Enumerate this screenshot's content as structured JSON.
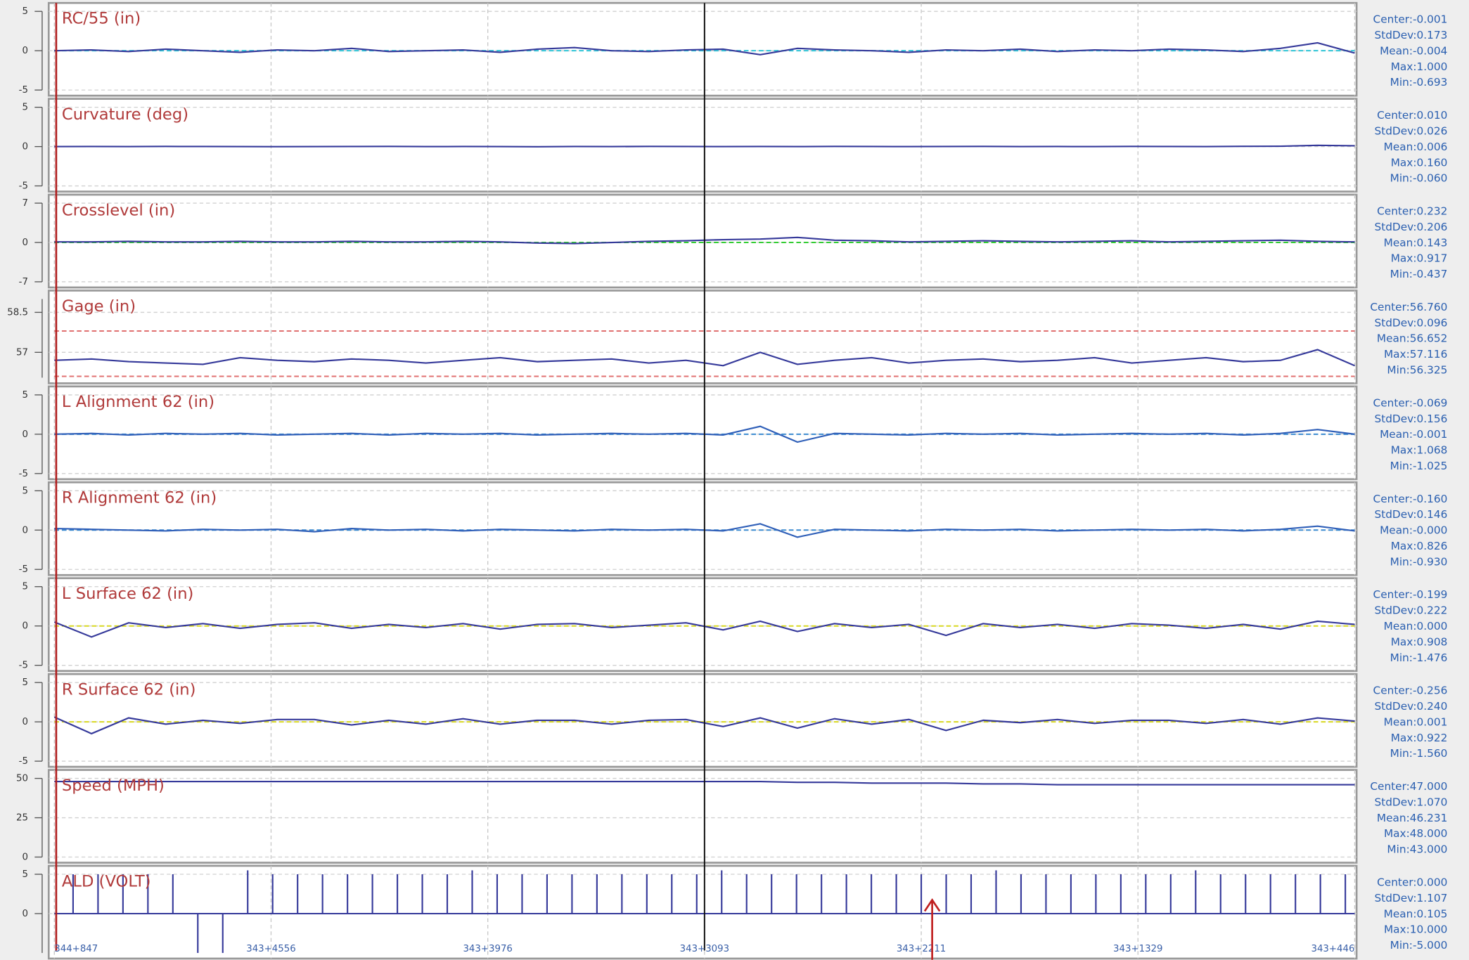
{
  "chart_data": [
    {
      "type": "line",
      "title": "RC/55 (in)",
      "ylim": [
        -5,
        5
      ],
      "yticks": [
        -5,
        0,
        5
      ],
      "color": "#35399a",
      "ref_color": "#2ec4d6",
      "stats": [
        "Center:-0.001",
        "StdDev:0.173",
        "Mean:-0.004",
        "Max:1.000",
        "Min:-0.693"
      ],
      "values": [
        0,
        0.1,
        -0.1,
        0.2,
        0,
        -0.2,
        0.1,
        0,
        0.3,
        -0.1,
        0,
        0.1,
        -0.2,
        0.2,
        0.4,
        0,
        -0.1,
        0.1,
        0.2,
        -0.5,
        0.3,
        0.1,
        0,
        -0.2,
        0.1,
        0,
        0.2,
        -0.1,
        0.1,
        0,
        0.2,
        0.1,
        -0.1,
        0.3,
        1.0,
        -0.3
      ]
    },
    {
      "type": "line",
      "title": "Curvature (deg)",
      "ylim": [
        -5,
        5
      ],
      "yticks": [
        -5,
        0,
        5
      ],
      "color": "#35399a",
      "stats": [
        "Center:0.010",
        "StdDev:0.026",
        "Mean:0.006",
        "Max:0.160",
        "Min:-0.060"
      ],
      "values": [
        0,
        0.01,
        0,
        0.02,
        0.01,
        0,
        -0.01,
        0,
        0.01,
        0.02,
        0,
        0.01,
        0,
        -0.02,
        0.01,
        0,
        0.02,
        0.01,
        0,
        0.01,
        0,
        0.02,
        0.01,
        0,
        0.01,
        0.02,
        0,
        0.01,
        0,
        0.02,
        0.01,
        0,
        0.03,
        0.05,
        0.16,
        0.1
      ]
    },
    {
      "type": "line",
      "title": "Crosslevel (in)",
      "ylim": [
        -7,
        7
      ],
      "yticks": [
        -7,
        0,
        7
      ],
      "color": "#35399a",
      "ref_color": "#33cc33",
      "stats": [
        "Center:0.232",
        "StdDev:0.206",
        "Mean:0.143",
        "Max:0.917",
        "Min:-0.437"
      ],
      "values": [
        0.1,
        0.1,
        0.2,
        0.1,
        0.1,
        0.2,
        0.1,
        0.1,
        0.2,
        0.1,
        0.1,
        0.2,
        0.1,
        -0.1,
        -0.2,
        0,
        0.2,
        0.3,
        0.5,
        0.6,
        0.9,
        0.4,
        0.3,
        0.1,
        0.2,
        0.3,
        0.2,
        0.1,
        0.2,
        0.3,
        0.1,
        0.2,
        0.3,
        0.4,
        0.2,
        0.1
      ]
    },
    {
      "type": "line",
      "title": "Gage (in)",
      "ylim": [
        56.05,
        59.0
      ],
      "yticks": [
        57,
        58.5
      ],
      "color": "#35399a",
      "limit_lines": [
        57.8,
        56.1
      ],
      "limit_color": "#e07070",
      "stats": [
        "Center:56.760",
        "StdDev:0.096",
        "Mean:56.652",
        "Max:57.116",
        "Min:56.325"
      ],
      "values": [
        56.7,
        56.75,
        56.65,
        56.6,
        56.55,
        56.8,
        56.7,
        56.65,
        56.75,
        56.7,
        56.6,
        56.7,
        56.8,
        56.65,
        56.7,
        56.75,
        56.6,
        56.7,
        56.5,
        57.0,
        56.55,
        56.7,
        56.8,
        56.6,
        56.7,
        56.75,
        56.65,
        56.7,
        56.8,
        56.6,
        56.7,
        56.8,
        56.65,
        56.7,
        57.1,
        56.5
      ]
    },
    {
      "type": "line",
      "title": "L Alignment 62 (in)",
      "ylim": [
        -5,
        5
      ],
      "yticks": [
        -5,
        0,
        5
      ],
      "color": "#2f5fb8",
      "ref_color": "#3a8ad0",
      "stats": [
        "Center:-0.069",
        "StdDev:0.156",
        "Mean:-0.001",
        "Max:1.068",
        "Min:-1.025"
      ],
      "values": [
        0,
        0.1,
        -0.1,
        0.1,
        0,
        0.1,
        -0.1,
        0,
        0.1,
        -0.1,
        0.1,
        0,
        0.1,
        -0.1,
        0,
        0.1,
        0,
        0.1,
        -0.1,
        1.0,
        -1.0,
        0.1,
        0,
        -0.1,
        0.1,
        0,
        0.1,
        -0.1,
        0,
        0.1,
        0,
        0.1,
        -0.1,
        0.1,
        0.6,
        0
      ]
    },
    {
      "type": "line",
      "title": "R Alignment 62 (in)",
      "ylim": [
        -5,
        5
      ],
      "yticks": [
        -5,
        0,
        5
      ],
      "color": "#2f5fb8",
      "ref_color": "#3a8ad0",
      "stats": [
        "Center:-0.160",
        "StdDev:0.146",
        "Mean:-0.000",
        "Max:0.826",
        "Min:-0.930"
      ],
      "values": [
        0.2,
        0.1,
        0,
        -0.1,
        0.1,
        0,
        0.1,
        -0.2,
        0.2,
        0,
        0.1,
        -0.1,
        0.1,
        0,
        -0.1,
        0.1,
        0,
        0.1,
        -0.1,
        0.8,
        -0.9,
        0.1,
        0,
        -0.1,
        0.1,
        0,
        0.1,
        -0.1,
        0,
        0.1,
        0,
        0.1,
        -0.1,
        0.1,
        0.5,
        -0.1
      ]
    },
    {
      "type": "line",
      "title": "L Surface 62 (in)",
      "ylim": [
        -5,
        5
      ],
      "yticks": [
        -5,
        0,
        5
      ],
      "color": "#35399a",
      "ref_color": "#d8d820",
      "stats": [
        "Center:-0.199",
        "StdDev:0.222",
        "Mean:0.000",
        "Max:0.908",
        "Min:-1.476"
      ],
      "values": [
        0.5,
        -1.4,
        0.4,
        -0.2,
        0.3,
        -0.3,
        0.2,
        0.4,
        -0.3,
        0.2,
        -0.2,
        0.3,
        -0.4,
        0.2,
        0.3,
        -0.2,
        0.1,
        0.4,
        -0.5,
        0.6,
        -0.7,
        0.3,
        -0.2,
        0.2,
        -1.2,
        0.3,
        -0.2,
        0.2,
        -0.3,
        0.3,
        0.1,
        -0.3,
        0.2,
        -0.4,
        0.6,
        0.2
      ]
    },
    {
      "type": "line",
      "title": "R Surface 62 (in)",
      "ylim": [
        -5,
        5
      ],
      "yticks": [
        -5,
        0,
        5
      ],
      "color": "#35399a",
      "ref_color": "#d8d820",
      "stats": [
        "Center:-0.256",
        "StdDev:0.240",
        "Mean:0.001",
        "Max:0.922",
        "Min:-1.560"
      ],
      "values": [
        0.6,
        -1.5,
        0.5,
        -0.3,
        0.2,
        -0.2,
        0.3,
        0.3,
        -0.4,
        0.2,
        -0.3,
        0.4,
        -0.3,
        0.2,
        0.2,
        -0.3,
        0.2,
        0.3,
        -0.6,
        0.5,
        -0.8,
        0.4,
        -0.3,
        0.3,
        -1.1,
        0.2,
        -0.1,
        0.3,
        -0.2,
        0.2,
        0.2,
        -0.2,
        0.3,
        -0.3,
        0.5,
        0.1
      ]
    },
    {
      "type": "line",
      "title": "Speed (MPH)",
      "ylim": [
        0,
        50
      ],
      "yticks": [
        0,
        25,
        50
      ],
      "color": "#35399a",
      "stats": [
        "Center:47.000",
        "StdDev:1.070",
        "Mean:46.231",
        "Max:48.000",
        "Min:43.000"
      ],
      "values": [
        48,
        48,
        48,
        48,
        48,
        48,
        48,
        48,
        48,
        48,
        48,
        48,
        48,
        48,
        48,
        48,
        48,
        48,
        48,
        48,
        47.5,
        47.5,
        47,
        47,
        47,
        46.5,
        46.5,
        46,
        46,
        46,
        46,
        46,
        46,
        46,
        46,
        46
      ]
    },
    {
      "type": "stem",
      "title": "ALD (VOLT)",
      "ylim": [
        -5,
        5
      ],
      "yticks": [
        0,
        5
      ],
      "color": "#35399a",
      "stats": [
        "Center:0.000",
        "StdDev:1.107",
        "Mean:0.105",
        "Max:10.000",
        "Min:-5.000"
      ],
      "values": [
        5,
        5,
        5,
        5,
        5,
        -5,
        -5,
        5.5,
        5,
        5,
        5,
        5,
        5,
        5,
        5,
        5,
        5.5,
        5,
        5,
        5,
        5,
        5,
        5,
        5,
        5,
        5,
        5.5,
        5,
        5,
        5,
        5,
        5,
        5,
        5,
        5,
        5,
        5,
        5.5,
        5,
        5,
        5,
        5,
        5,
        5,
        5,
        5.5,
        5,
        5,
        5,
        5,
        5,
        5
      ]
    }
  ],
  "x_axis_labels": [
    "344+847",
    "343+4556",
    "343+3976",
    "343+3093",
    "343+2211",
    "343+1329",
    "343+446"
  ]
}
